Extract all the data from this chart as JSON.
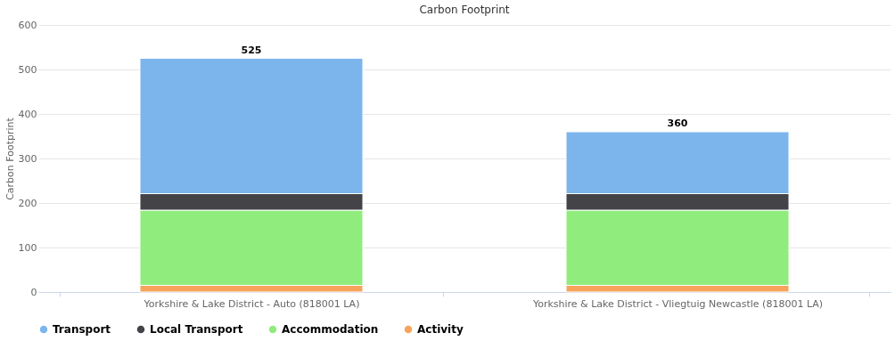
{
  "chart_data": {
    "type": "bar",
    "title": "Carbon Footprint",
    "ylabel": "Carbon Footprint",
    "categories": [
      "Yorkshire & Lake District - Auto (818001 LA)",
      "Yorkshire & Lake District - Vliegtuig Newcastle (818001 LA)"
    ],
    "stacked": true,
    "series": [
      {
        "name": "Activity",
        "color": "#f7a35c",
        "values": [
          15,
          15
        ]
      },
      {
        "name": "Accommodation",
        "color": "#90ed7d",
        "values": [
          169,
          169
        ]
      },
      {
        "name": "Local Transport",
        "color": "#434348",
        "values": [
          37,
          37
        ]
      },
      {
        "name": "Transport",
        "color": "#7cb5ec",
        "values": [
          304,
          139
        ]
      }
    ],
    "totals": [
      "525",
      "360"
    ],
    "ylim": [
      0,
      600
    ],
    "yticks": [
      0,
      100,
      200,
      300,
      400,
      500,
      600
    ],
    "grid": "y",
    "legend": "bottom"
  }
}
